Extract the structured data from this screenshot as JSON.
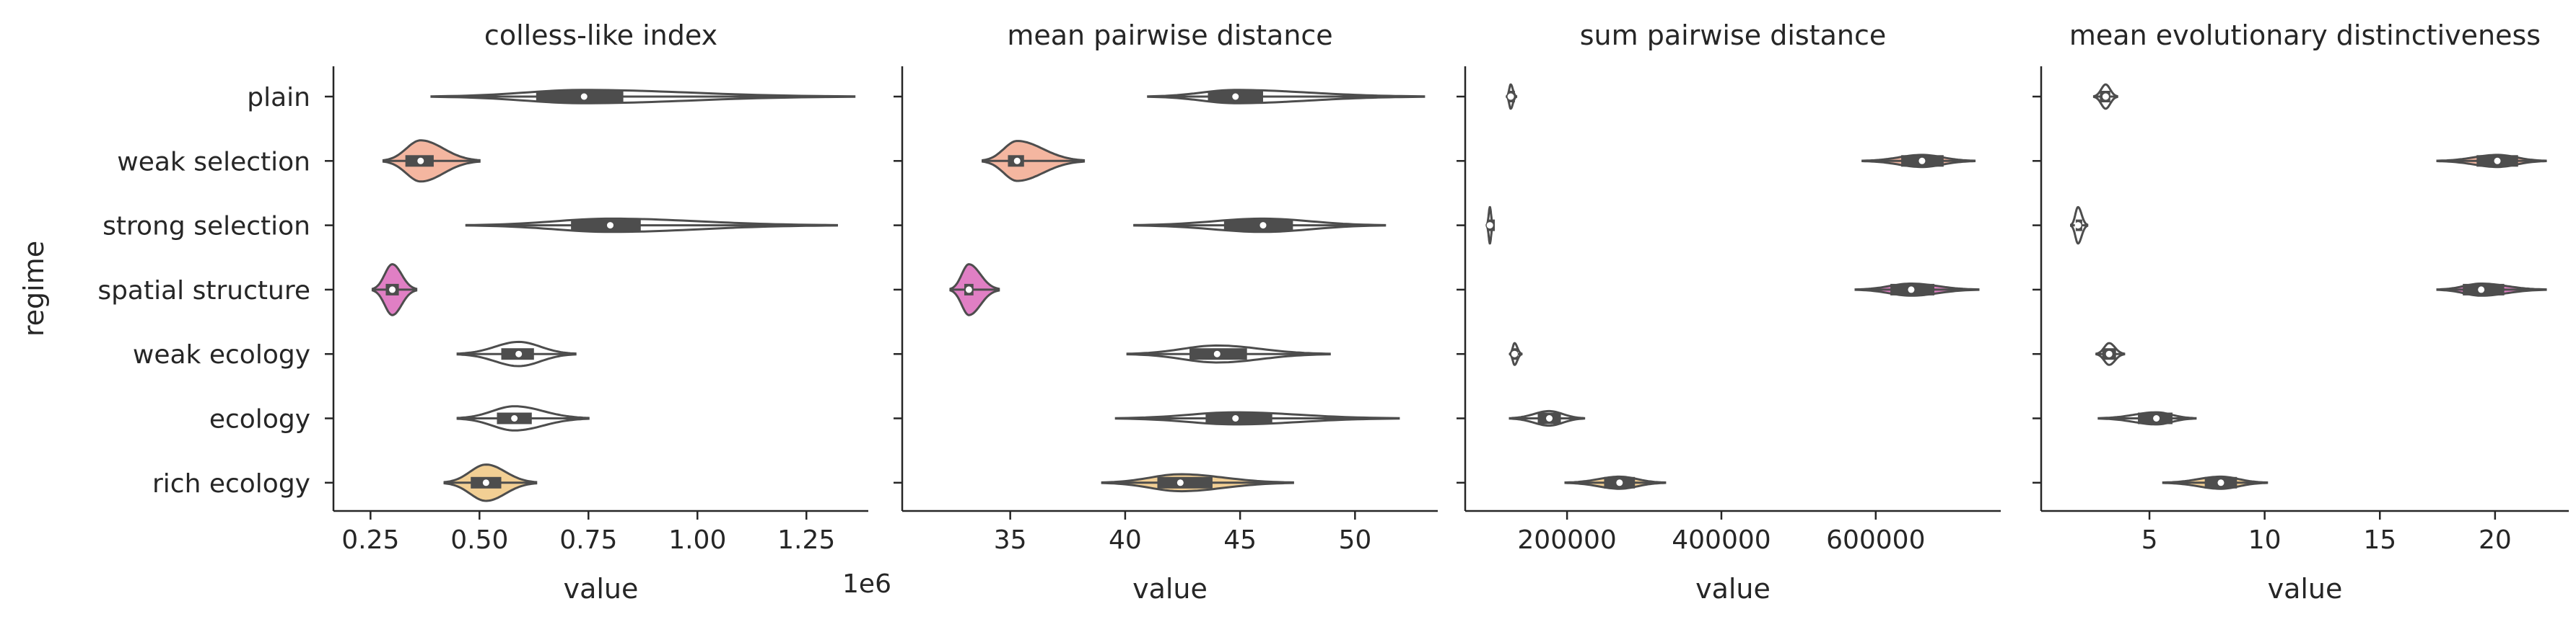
{
  "chart_data": {
    "type": "violin",
    "ylabel": "regime",
    "categories": [
      "plain",
      "weak selection",
      "strong selection",
      "spatial structure",
      "weak ecology",
      "ecology",
      "rich ecology"
    ],
    "palette": [
      "#ffffff",
      "#f4b6a0",
      "#ffffff",
      "#e07fc4",
      "#ffffff",
      "#ffffff",
      "#f2cf94"
    ],
    "line_color": "#4d4d4d",
    "panels": [
      {
        "title": "colless-like index",
        "xlabel": "value",
        "offset_text": "1e6",
        "xlim": [
          0.165,
          1.392
        ],
        "xticks": [
          0.25,
          0.5,
          0.75,
          1.0,
          1.25
        ],
        "xtick_labels": [
          "0.25",
          "0.50",
          "0.75",
          "1.00",
          "1.25"
        ],
        "violins": [
          {
            "min": 0.39,
            "q1": 0.63,
            "median": 0.74,
            "q3": 0.83,
            "max": 1.36,
            "max_half_width": 0.11
          },
          {
            "min": 0.28,
            "q1": 0.33,
            "median": 0.365,
            "q3": 0.395,
            "max": 0.5,
            "max_half_width": 0.34
          },
          {
            "min": 0.47,
            "q1": 0.71,
            "median": 0.8,
            "q3": 0.87,
            "max": 1.32,
            "max_half_width": 0.11
          },
          {
            "min": 0.255,
            "q1": 0.285,
            "median": 0.3,
            "q3": 0.315,
            "max": 0.355,
            "max_half_width": 0.42
          },
          {
            "min": 0.45,
            "q1": 0.55,
            "median": 0.59,
            "q3": 0.625,
            "max": 0.72,
            "max_half_width": 0.2
          },
          {
            "min": 0.45,
            "q1": 0.54,
            "median": 0.58,
            "q3": 0.62,
            "max": 0.75,
            "max_half_width": 0.2
          },
          {
            "min": 0.42,
            "q1": 0.48,
            "median": 0.515,
            "q3": 0.55,
            "max": 0.63,
            "max_half_width": 0.3
          }
        ]
      },
      {
        "title": "mean pairwise distance",
        "xlabel": "value",
        "xlim": [
          30.3,
          53.6
        ],
        "xticks": [
          35,
          40,
          45,
          50
        ],
        "xtick_labels": [
          "35",
          "40",
          "45",
          "50"
        ],
        "violins": [
          {
            "min": 41,
            "q1": 43.6,
            "median": 44.8,
            "q3": 46,
            "max": 53,
            "max_half_width": 0.11
          },
          {
            "min": 33.8,
            "q1": 34.9,
            "median": 35.3,
            "q3": 35.6,
            "max": 38.2,
            "max_half_width": 0.33
          },
          {
            "min": 40.4,
            "q1": 44.3,
            "median": 46,
            "q3": 47.3,
            "max": 51.3,
            "max_half_width": 0.11
          },
          {
            "min": 32.4,
            "q1": 33,
            "median": 33.2,
            "q3": 33.4,
            "max": 34.5,
            "max_half_width": 0.42
          },
          {
            "min": 40.1,
            "q1": 42.8,
            "median": 44,
            "q3": 45.3,
            "max": 48.9,
            "max_half_width": 0.14
          },
          {
            "min": 39.6,
            "q1": 43.5,
            "median": 44.8,
            "q3": 46.4,
            "max": 51.9,
            "max_half_width": 0.1
          },
          {
            "min": 39,
            "q1": 41.4,
            "median": 42.4,
            "q3": 43.8,
            "max": 47.3,
            "max_half_width": 0.14
          }
        ]
      },
      {
        "title": "sum pairwise distance",
        "xlabel": "value",
        "xlim": [
          68000,
          762000
        ],
        "xticks": [
          200000,
          400000,
          600000
        ],
        "xtick_labels": [
          "200000",
          "400000",
          "600000"
        ],
        "violins": [
          {
            "min": 122000,
            "q1": 124000,
            "median": 127000,
            "q3": 130000,
            "max": 134000,
            "max_half_width": 0.2
          },
          {
            "min": 583000,
            "q1": 633000,
            "median": 660000,
            "q3": 688000,
            "max": 728000,
            "max_half_width": 0.1
          },
          {
            "min": 96000,
            "q1": 98000,
            "median": 100000,
            "q3": 102000,
            "max": 104000,
            "max_half_width": 0.3
          },
          {
            "min": 574000,
            "q1": 619000,
            "median": 646000,
            "q3": 676000,
            "max": 733000,
            "max_half_width": 0.1
          },
          {
            "min": 126000,
            "q1": 128000,
            "median": 132000,
            "q3": 136000,
            "max": 141000,
            "max_half_width": 0.18
          },
          {
            "min": 126000,
            "q1": 162000,
            "median": 177000,
            "q3": 192000,
            "max": 222000,
            "max_half_width": 0.12
          },
          {
            "min": 198000,
            "q1": 248000,
            "median": 268000,
            "q3": 288000,
            "max": 327000,
            "max_half_width": 0.1
          }
        ]
      },
      {
        "title": "mean evolutionary distinctiveness",
        "xlabel": "value",
        "xlim": [
          0.3,
          23.2
        ],
        "xticks": [
          5,
          10,
          15,
          20
        ],
        "xtick_labels": [
          "5",
          "10",
          "15",
          "20"
        ],
        "violins": [
          {
            "min": 2.6,
            "q1": 2.85,
            "median": 3.1,
            "q3": 3.3,
            "max": 3.6,
            "max_half_width": 0.2
          },
          {
            "min": 17.5,
            "q1": 19.2,
            "median": 20.1,
            "q3": 21,
            "max": 22.2,
            "max_half_width": 0.1
          },
          {
            "min": 1.6,
            "q1": 1.8,
            "median": 1.9,
            "q3": 2.05,
            "max": 2.3,
            "max_half_width": 0.3
          },
          {
            "min": 17.5,
            "q1": 18.6,
            "median": 19.4,
            "q3": 20.4,
            "max": 22.2,
            "max_half_width": 0.1
          },
          {
            "min": 2.7,
            "q1": 2.95,
            "median": 3.25,
            "q3": 3.55,
            "max": 3.9,
            "max_half_width": 0.18
          },
          {
            "min": 2.8,
            "q1": 4.5,
            "median": 5.3,
            "q3": 6,
            "max": 7,
            "max_half_width": 0.1
          },
          {
            "min": 5.6,
            "q1": 7.4,
            "median": 8.1,
            "q3": 8.8,
            "max": 10.1,
            "max_half_width": 0.1
          }
        ]
      }
    ]
  }
}
